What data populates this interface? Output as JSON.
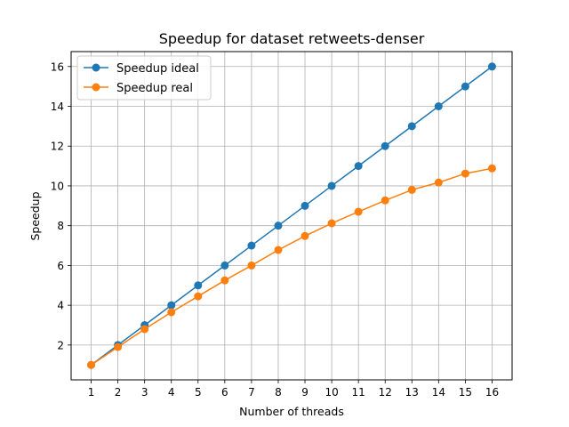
{
  "chart_data": {
    "type": "line",
    "title": "Speedup for dataset retweets-denser",
    "xlabel": "Number of threads",
    "ylabel": "Speedup",
    "x": [
      1,
      2,
      3,
      4,
      5,
      6,
      7,
      8,
      9,
      10,
      11,
      12,
      13,
      14,
      15,
      16
    ],
    "xticks": [
      1,
      2,
      3,
      4,
      5,
      6,
      7,
      8,
      9,
      10,
      11,
      12,
      13,
      14,
      15,
      16
    ],
    "yticks": [
      2,
      4,
      6,
      8,
      10,
      12,
      14,
      16
    ],
    "xlim": [
      0.25,
      16.75
    ],
    "ylim": [
      0.25,
      16.75
    ],
    "grid": true,
    "legend_position": "top-left",
    "series": [
      {
        "name": "Speedup ideal",
        "color": "#1f77b4",
        "marker": "circle",
        "values": [
          1,
          2,
          3,
          4,
          5,
          6,
          7,
          8,
          9,
          10,
          11,
          12,
          13,
          14,
          15,
          16
        ]
      },
      {
        "name": "Speedup real",
        "color": "#ff7f0e",
        "marker": "circle",
        "values": [
          1.0,
          1.9,
          2.8,
          3.65,
          4.45,
          5.25,
          6.0,
          6.78,
          7.48,
          8.12,
          8.7,
          9.27,
          9.8,
          10.17,
          10.62,
          10.88
        ]
      }
    ]
  }
}
